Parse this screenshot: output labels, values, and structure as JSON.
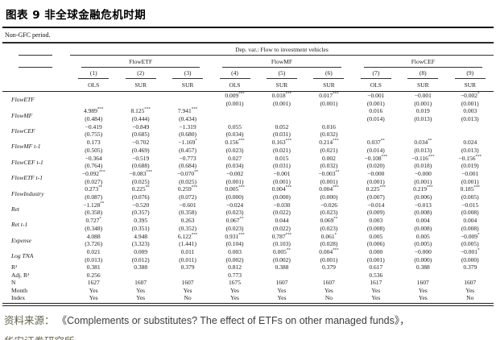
{
  "title": "图表 9  非全球金融危机时期",
  "subtitle": "Non-GFC period.",
  "table": {
    "dep_var_header": "Dep. var.: Flow to investment vehicles",
    "groups": [
      {
        "label": "FlowETF"
      },
      {
        "label": "FlowMF"
      },
      {
        "label": "FlowCEF"
      }
    ],
    "col_numbers": [
      "(1)",
      "(2)",
      "(3)",
      "(4)",
      "(5)",
      "(6)",
      "(7)",
      "(8)",
      "(9)"
    ],
    "col_methods": [
      "OLS",
      "SUR",
      "SUR",
      "OLS",
      "SUR",
      "SUR",
      "OLS",
      "SUR",
      "SUR"
    ],
    "rows": [
      {
        "label": "FlowETF",
        "italic": true,
        "cells": [
          {
            "c": "",
            "s": "",
            "e": ""
          },
          {
            "c": "",
            "s": "",
            "e": ""
          },
          {
            "c": "",
            "s": "",
            "e": ""
          },
          {
            "c": "0.009",
            "s": "***",
            "e": "(0.001)"
          },
          {
            "c": "0.018",
            "s": "***",
            "e": "(0.001)"
          },
          {
            "c": "0.017",
            "s": "***",
            "e": "(0.001)"
          },
          {
            "c": "−0.001",
            "s": "",
            "e": "(0.001)"
          },
          {
            "c": "−0.001",
            "s": "",
            "e": "(0.001)"
          },
          {
            "c": "−0.002",
            "s": "*",
            "e": "(0.001)"
          }
        ]
      },
      {
        "label": "FlowMF",
        "italic": true,
        "cells": [
          {
            "c": "4.989",
            "s": "***",
            "e": "(0.484)"
          },
          {
            "c": "8.125",
            "s": "***",
            "e": "(0.444)"
          },
          {
            "c": "7.941",
            "s": "***",
            "e": "(0.434)"
          },
          {
            "c": "",
            "s": "",
            "e": ""
          },
          {
            "c": "",
            "s": "",
            "e": ""
          },
          {
            "c": "",
            "s": "",
            "e": ""
          },
          {
            "c": "0.016",
            "s": "",
            "e": "(0.014)"
          },
          {
            "c": "0.019",
            "s": "",
            "e": "(0.013)"
          },
          {
            "c": "0.003",
            "s": "",
            "e": "(0.013)"
          }
        ]
      },
      {
        "label": "FlowCEF",
        "italic": true,
        "cells": [
          {
            "c": "−0.419",
            "s": "",
            "e": "(0.755)"
          },
          {
            "c": "−0.849",
            "s": "",
            "e": "(0.685)"
          },
          {
            "c": "−1.319",
            "s": "",
            "e": "(0.680)"
          },
          {
            "c": "0.055",
            "s": "",
            "e": "(0.034)"
          },
          {
            "c": "0.052",
            "s": "",
            "e": "(0.031)"
          },
          {
            "c": "0.016",
            "s": "",
            "e": "(0.032)"
          },
          {
            "c": "",
            "s": "",
            "e": ""
          },
          {
            "c": "",
            "s": "",
            "e": ""
          },
          {
            "c": "",
            "s": "",
            "e": ""
          }
        ]
      },
      {
        "label": "FlowMF t-1",
        "italic": true,
        "cells": [
          {
            "c": "0.173",
            "s": "",
            "e": "(0.505)"
          },
          {
            "c": "−0.702",
            "s": "",
            "e": "(0.469)"
          },
          {
            "c": "−1.169",
            "s": "*",
            "e": "(0.457)"
          },
          {
            "c": "0.156",
            "s": "***",
            "e": "(0.023)"
          },
          {
            "c": "0.163",
            "s": "***",
            "e": "(0.021)"
          },
          {
            "c": "0.214",
            "s": "***",
            "e": "(0.021)"
          },
          {
            "c": "0.037",
            "s": "**",
            "e": "(0.014)"
          },
          {
            "c": "0.034",
            "s": "**",
            "e": "(0.013)"
          },
          {
            "c": "0.024",
            "s": "",
            "e": "(0.013)"
          }
        ]
      },
      {
        "label": "FlowCEF t-1",
        "italic": true,
        "cells": [
          {
            "c": "−0.364",
            "s": "",
            "e": "(0.764)"
          },
          {
            "c": "−0.519",
            "s": "",
            "e": "(0.688)"
          },
          {
            "c": "−0.773",
            "s": "",
            "e": "(0.684)"
          },
          {
            "c": "0.027",
            "s": "",
            "e": "(0.034)"
          },
          {
            "c": "0.015",
            "s": "",
            "e": "(0.031)"
          },
          {
            "c": "0.002",
            "s": "",
            "e": "(0.032)"
          },
          {
            "c": "−0.108",
            "s": "***",
            "e": "(0.020)"
          },
          {
            "c": "−0.116",
            "s": "***",
            "e": "(0.018)"
          },
          {
            "c": "−0.156",
            "s": "***",
            "e": "(0.019)"
          }
        ]
      },
      {
        "label": "FlowETF t-1",
        "italic": true,
        "cells": [
          {
            "c": "−0.092",
            "s": "***",
            "e": "(0.027)"
          },
          {
            "c": "−0.083",
            "s": "***",
            "e": "(0.025)"
          },
          {
            "c": "−0.070",
            "s": "**",
            "e": "(0.025)"
          },
          {
            "c": "−0.002",
            "s": "",
            "e": "(0.001)"
          },
          {
            "c": "−0.001",
            "s": "",
            "e": "(0.001)"
          },
          {
            "c": "−0.003",
            "s": "**",
            "e": "(0.001)"
          },
          {
            "c": "−0.000",
            "s": "",
            "e": "(0.001)"
          },
          {
            "c": "−0.000",
            "s": "",
            "e": "(0.001)"
          },
          {
            "c": "−0.001",
            "s": "",
            "e": "(0.001)"
          }
        ]
      },
      {
        "label": "FlowIndustry",
        "italic": true,
        "cells": [
          {
            "c": "0.273",
            "s": "**",
            "e": "(0.087)"
          },
          {
            "c": "0.225",
            "s": "**",
            "e": "(0.076)"
          },
          {
            "c": "0.259",
            "s": "***",
            "e": "(0.072)"
          },
          {
            "c": "0.005",
            "s": "***",
            "e": "(0.000)"
          },
          {
            "c": "0.004",
            "s": "***",
            "e": "(0.000)"
          },
          {
            "c": "0.004",
            "s": "***",
            "e": "(0.000)"
          },
          {
            "c": "0.225",
            "s": "***",
            "e": "(0.007)"
          },
          {
            "c": "0.219",
            "s": "***",
            "e": "(0.006)"
          },
          {
            "c": "0.185",
            "s": "***",
            "e": "(0.005)"
          }
        ]
      },
      {
        "label": "Ret",
        "italic": true,
        "cells": [
          {
            "c": "−1.128",
            "s": "**",
            "e": "(0.358)"
          },
          {
            "c": "−0.520",
            "s": "",
            "e": "(0.357)"
          },
          {
            "c": "−0.601",
            "s": "",
            "e": "(0.358)"
          },
          {
            "c": "−0.024",
            "s": "",
            "e": "(0.023)"
          },
          {
            "c": "−0.030",
            "s": "",
            "e": "(0.022)"
          },
          {
            "c": "−0.026",
            "s": "",
            "e": "(0.023)"
          },
          {
            "c": "−0.014",
            "s": "",
            "e": "(0.009)"
          },
          {
            "c": "−0.013",
            "s": "",
            "e": "(0.008)"
          },
          {
            "c": "−0.015",
            "s": "",
            "e": "(0.008)"
          }
        ]
      },
      {
        "label": "Ret t-1",
        "italic": true,
        "cells": [
          {
            "c": "0.727",
            "s": "*",
            "e": "(0.348)"
          },
          {
            "c": "0.395",
            "s": "",
            "e": "(0.351)"
          },
          {
            "c": "0.263",
            "s": "",
            "e": "(0.352)"
          },
          {
            "c": "0.067",
            "s": "**",
            "e": "(0.023)"
          },
          {
            "c": "0.044",
            "s": "",
            "e": "(0.022)"
          },
          {
            "c": "0.069",
            "s": "**",
            "e": "(0.023)"
          },
          {
            "c": "0.003",
            "s": "",
            "e": "(0.008)"
          },
          {
            "c": "0.004",
            "s": "",
            "e": "(0.008)"
          },
          {
            "c": "0.004",
            "s": "",
            "e": "(0.008)"
          }
        ]
      },
      {
        "label": "Expense",
        "italic": true,
        "cells": [
          {
            "c": "4.088",
            "s": "",
            "e": "(3.726)"
          },
          {
            "c": "4.948",
            "s": "",
            "e": "(3.323)"
          },
          {
            "c": "6.122",
            "s": "***",
            "e": "(1.441)"
          },
          {
            "c": "0.931",
            "s": "***",
            "e": "(0.104)"
          },
          {
            "c": "0.787",
            "s": "***",
            "e": "(0.103)"
          },
          {
            "c": "0.061",
            "s": "*",
            "e": "(0.028)"
          },
          {
            "c": "0.005",
            "s": "",
            "e": "(0.006)"
          },
          {
            "c": "0.005",
            "s": "",
            "e": "(0.005)"
          },
          {
            "c": "−0.009",
            "s": "*",
            "e": "(0.005)"
          }
        ]
      },
      {
        "label": "Log TNA",
        "italic": true,
        "cells": [
          {
            "c": "0.021",
            "s": "",
            "e": "(0.013)"
          },
          {
            "c": "0.009",
            "s": "",
            "e": "(0.012)"
          },
          {
            "c": "0.011",
            "s": "",
            "e": "(0.011)"
          },
          {
            "c": "0.003",
            "s": "",
            "e": "(0.002)"
          },
          {
            "c": "0.005",
            "s": "**",
            "e": "(0.002)"
          },
          {
            "c": "0.004",
            "s": "***",
            "e": "(0.001)"
          },
          {
            "c": "0.000",
            "s": "",
            "e": "(0.001)"
          },
          {
            "c": "−0.000",
            "s": "",
            "e": "(0.000)"
          },
          {
            "c": "−0.001",
            "s": "*",
            "e": "(0.000)"
          }
        ]
      },
      {
        "label": "R²",
        "italic": false,
        "simple": true,
        "cells": [
          "0.381",
          "0.388",
          "0.379",
          "0.812",
          "0.388",
          "0.379",
          "0.617",
          "0.388",
          "0.379"
        ]
      },
      {
        "label": "Adj. R²",
        "italic": false,
        "simple": true,
        "cells": [
          "0.256",
          "",
          "",
          "0.773",
          "",
          "",
          "0.536",
          "",
          ""
        ]
      },
      {
        "label": "N",
        "italic": false,
        "simple": true,
        "cells": [
          "1627",
          "1607",
          "1607",
          "1675",
          "1607",
          "1607",
          "1617",
          "1607",
          "1607"
        ]
      },
      {
        "label": "Month",
        "italic": false,
        "simple": true,
        "cells": [
          "Yes",
          "Yes",
          "Yes",
          "Yes",
          "Yes",
          "Yes",
          "Yes",
          "Yes",
          "Yes"
        ]
      },
      {
        "label": "Index",
        "italic": false,
        "simple": true,
        "cells": [
          "Yes",
          "Yes",
          "No",
          "Yes",
          "Yes",
          "No",
          "Yes",
          "Yes",
          "No"
        ]
      }
    ]
  },
  "footer": {
    "source_label": "资料来源：",
    "source_text": "《Complements or substitutes? The effect of ETFs on other managed funds》，",
    "source_org": "华安证券研究所"
  },
  "colors": {
    "rule_dark": "#1f1f1f",
    "footer_olive": "#64634c",
    "footer_text": "#3e3e3e"
  }
}
